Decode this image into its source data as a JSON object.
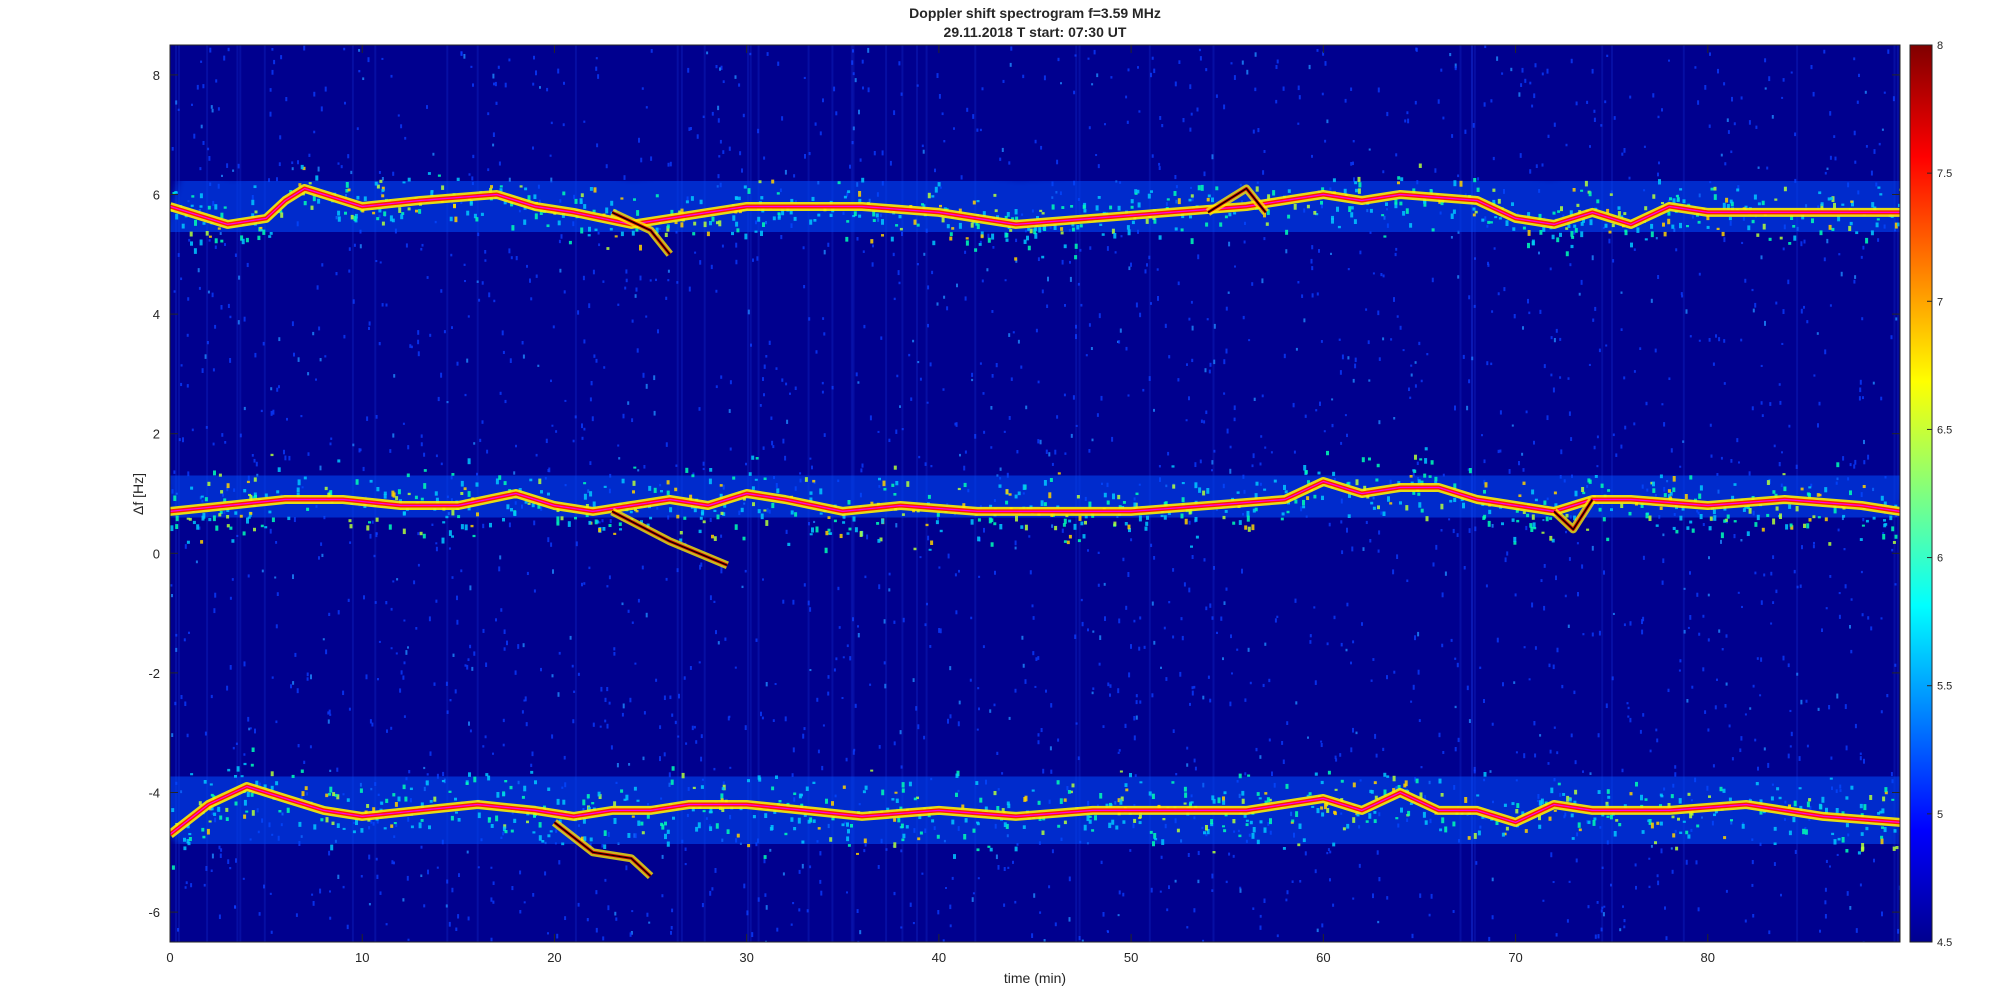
{
  "chart_data": {
    "type": "heatmap",
    "title": "Doppler shift spectrogram f=3.59 MHz",
    "subtitle": "29.11.2018   T start: 07:30 UT",
    "xlabel": "time (min)",
    "ylabel": "Δf [Hz]",
    "xlim": [
      0,
      90
    ],
    "ylim": [
      -6.5,
      8.5
    ],
    "x_ticks": [
      "0",
      "10",
      "20",
      "30",
      "40",
      "50",
      "60",
      "70",
      "80"
    ],
    "y_ticks": [
      "8",
      "6",
      "4",
      "2",
      "0",
      "-2",
      "-4",
      "-6"
    ],
    "colorbar": {
      "colormap": "jet",
      "range": [
        4.5,
        8
      ],
      "ticks": [
        "8",
        "7.5",
        "7",
        "6.5",
        "6",
        "5.5",
        "5",
        "4.5"
      ]
    },
    "background_color": "#00008f",
    "traces": [
      {
        "t": [
          0,
          3,
          5,
          6,
          7,
          8,
          10,
          13,
          17,
          19,
          21,
          24,
          26,
          28,
          30,
          33,
          36,
          40,
          44,
          48,
          52,
          56,
          58,
          60,
          62,
          64,
          68,
          70,
          72,
          73,
          74,
          76,
          78,
          80,
          84,
          88,
          90
        ],
        "df": [
          5.8,
          5.5,
          5.6,
          5.9,
          6.1,
          6.0,
          5.8,
          5.9,
          6.0,
          5.8,
          5.7,
          5.5,
          5.6,
          5.7,
          5.8,
          5.8,
          5.8,
          5.7,
          5.5,
          5.6,
          5.7,
          5.8,
          5.9,
          6.0,
          5.9,
          6.0,
          5.9,
          5.6,
          5.5,
          5.6,
          5.7,
          5.5,
          5.8,
          5.7,
          5.7,
          5.7,
          5.7
        ],
        "spread": 0.35
      },
      {
        "t": [
          0,
          3,
          6,
          9,
          12,
          15,
          18,
          20,
          22,
          24,
          26,
          28,
          30,
          32,
          35,
          38,
          42,
          46,
          50,
          54,
          58,
          60,
          62,
          64,
          66,
          68,
          70,
          72,
          74,
          76,
          80,
          84,
          88,
          90
        ],
        "df": [
          0.7,
          0.8,
          0.9,
          0.9,
          0.8,
          0.8,
          1.0,
          0.8,
          0.7,
          0.8,
          0.9,
          0.8,
          1.0,
          0.9,
          0.7,
          0.8,
          0.7,
          0.7,
          0.7,
          0.8,
          0.9,
          1.2,
          1.0,
          1.1,
          1.1,
          0.9,
          0.8,
          0.7,
          0.9,
          0.9,
          0.8,
          0.9,
          0.8,
          0.7
        ],
        "spread": 0.45
      },
      {
        "t": [
          0,
          2,
          4,
          6,
          8,
          10,
          13,
          16,
          19,
          21,
          23,
          25,
          27,
          30,
          33,
          36,
          40,
          44,
          48,
          52,
          56,
          60,
          62,
          64,
          66,
          68,
          70,
          72,
          74,
          78,
          82,
          86,
          90
        ],
        "df": [
          -4.7,
          -4.2,
          -3.9,
          -4.1,
          -4.3,
          -4.4,
          -4.3,
          -4.2,
          -4.3,
          -4.4,
          -4.3,
          -4.3,
          -4.2,
          -4.2,
          -4.3,
          -4.4,
          -4.3,
          -4.4,
          -4.3,
          -4.3,
          -4.3,
          -4.1,
          -4.3,
          -4.0,
          -4.3,
          -4.3,
          -4.5,
          -4.2,
          -4.3,
          -4.3,
          -4.2,
          -4.4,
          -4.5
        ],
        "spread": 0.45
      }
    ],
    "disturbances": [
      {
        "t": [
          23,
          25,
          26
        ],
        "df": [
          5.7,
          5.4,
          5.0
        ]
      },
      {
        "t": [
          23,
          26,
          29
        ],
        "df": [
          0.7,
          0.2,
          -0.2
        ]
      },
      {
        "t": [
          20,
          22,
          24,
          25
        ],
        "df": [
          -4.5,
          -5.0,
          -5.1,
          -5.4
        ]
      },
      {
        "t": [
          54,
          56,
          57
        ],
        "df": [
          5.7,
          6.1,
          5.7
        ]
      },
      {
        "t": [
          72,
          73,
          74
        ],
        "df": [
          0.7,
          0.4,
          0.9
        ]
      }
    ]
  }
}
